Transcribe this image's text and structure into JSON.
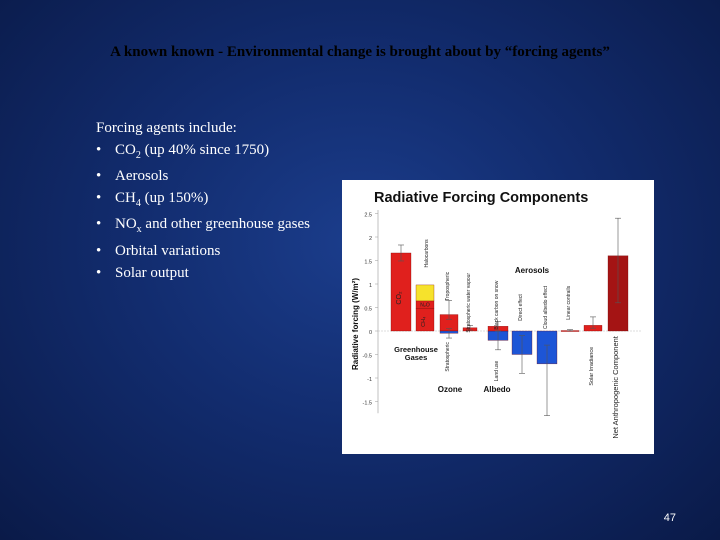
{
  "slide": {
    "title": "A known known - Environmental change is brought about by “forcing agents”",
    "page_number": "47"
  },
  "bullets": {
    "intro": "Forcing agents include:",
    "items": [
      {
        "main": "CO",
        "sub": "2",
        "rest": " (up 40% since 1750)"
      },
      {
        "main": "Aerosols",
        "sub": "",
        "rest": ""
      },
      {
        "main": "CH",
        "sub": "4",
        "rest": " (up 150%)"
      },
      {
        "main": "NO",
        "sub": "x",
        "rest": " and other greenhouse gases"
      },
      {
        "main": "Orbital variations",
        "sub": "",
        "rest": ""
      },
      {
        "main": "Solar output",
        "sub": "",
        "rest": ""
      }
    ]
  },
  "colors": {
    "greenhouse_red": "#e0201d",
    "greenhouse_yellow": "#f6e22c",
    "ozone_red": "#e0201d",
    "ozone_blue": "#1d55d6",
    "aerosol_blue": "#1d55d6",
    "net_darkred": "#a41414"
  },
  "chart_data": {
    "type": "bar",
    "title": "Radiative Forcing Components",
    "ylabel": "Radiative forcing (W/m²)",
    "ylim": [
      -2.5,
      2.5
    ],
    "yticks": [
      "2.5",
      "2",
      "1.5",
      "1",
      "0.5",
      "0",
      "-0.5",
      "-1",
      "-1.5"
    ],
    "groups": [
      "Greenhouse Gases",
      "Ozone",
      "Albedo",
      "Aerosols"
    ],
    "components": [
      {
        "label": "CO₂",
        "value": 1.66,
        "lo": 1.49,
        "hi": 1.83,
        "color": "#e0201d"
      },
      {
        "label": "CH₄",
        "value": 0.48,
        "color": "#e0201d"
      },
      {
        "label": "N₂O",
        "value": 0.16,
        "color": "#e0201d"
      },
      {
        "label": "Halocarbons",
        "value": 0.34,
        "color": "#f6e22c"
      },
      {
        "label": "Tropospheric",
        "value": 0.35,
        "lo": 0.25,
        "hi": 0.65,
        "color": "#e0201d"
      },
      {
        "label": "Stratospheric",
        "value": -0.05,
        "lo": -0.15,
        "hi": 0.05,
        "color": "#1d55d6"
      },
      {
        "label": "Stratospheric water vapour",
        "value": 0.07,
        "lo": 0.02,
        "hi": 0.12,
        "color": "#e0201d"
      },
      {
        "label": "Land use",
        "value": -0.2,
        "lo": -0.4,
        "hi": 0.0,
        "color": "#1d55d6"
      },
      {
        "label": "Black carbon on snow",
        "value": 0.1,
        "lo": 0.0,
        "hi": 0.2,
        "color": "#e0201d"
      },
      {
        "label": "Direct effect",
        "value": -0.5,
        "lo": -0.9,
        "hi": -0.1,
        "color": "#1d55d6"
      },
      {
        "label": "Cloud albedo effect",
        "value": -0.7,
        "lo": -1.8,
        "hi": -0.3,
        "color": "#1d55d6"
      },
      {
        "label": "Linear contrails",
        "value": 0.01,
        "lo": 0.003,
        "hi": 0.03,
        "color": "#e0201d"
      },
      {
        "label": "Solar Irradiance",
        "value": 0.12,
        "lo": 0.06,
        "hi": 0.3,
        "color": "#e0201d"
      },
      {
        "label": "Net Anthropogenic Component",
        "value": 1.6,
        "lo": 0.6,
        "hi": 2.4,
        "color": "#a41414"
      }
    ]
  }
}
